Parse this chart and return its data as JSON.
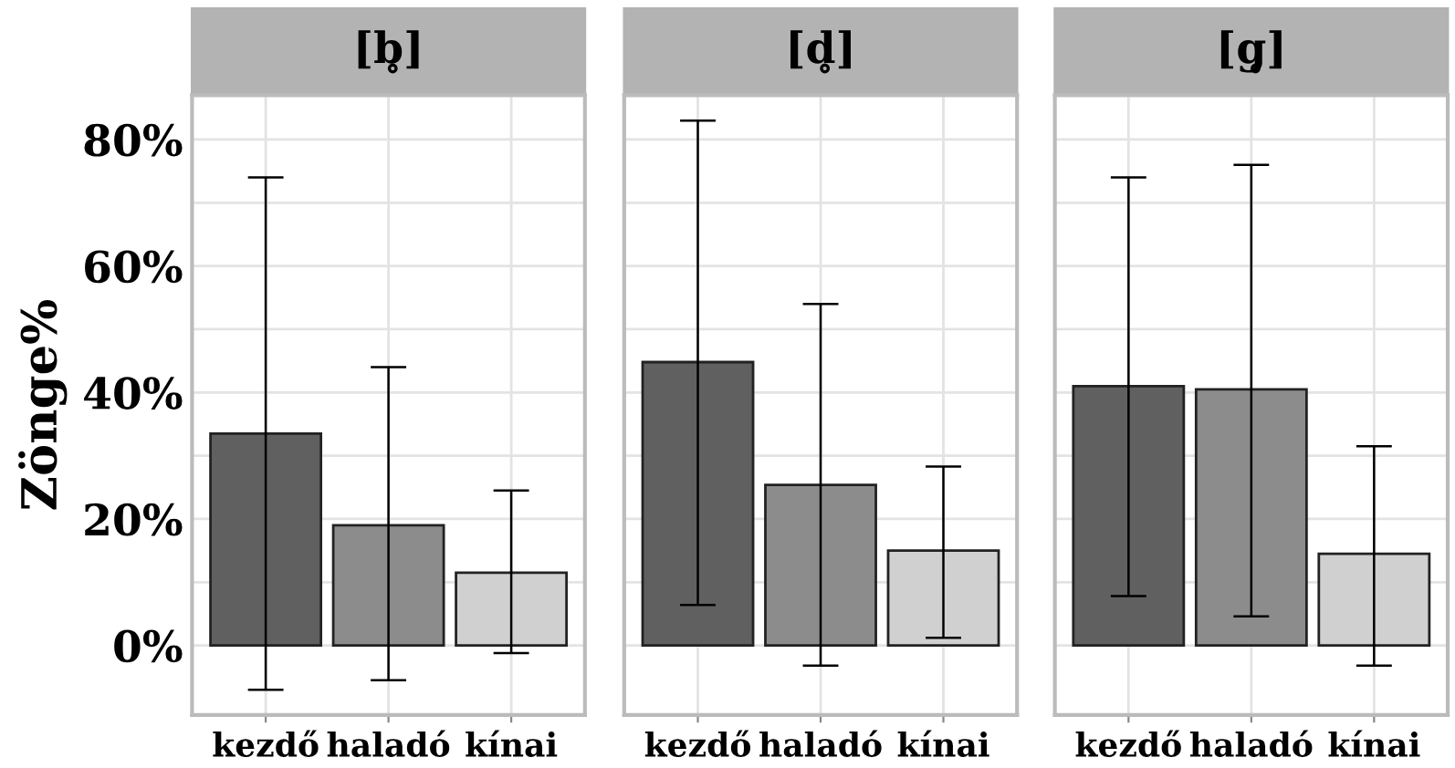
{
  "chart_data": [
    {
      "type": "bar",
      "title": "[b̥]",
      "ylabel": "Zönge%",
      "categories": [
        "kezdő",
        "haladó",
        "kínai"
      ],
      "values": [
        33.5,
        19,
        11.5
      ],
      "colors": [
        "#606060",
        "#8c8c8c",
        "#d0d0d0"
      ],
      "errors": [
        [
          -7,
          74
        ],
        [
          -5.5,
          44
        ],
        [
          -1.2,
          24.5
        ]
      ],
      "ylim": [
        -11,
        87
      ],
      "yticks": [
        {
          "value": 0,
          "label": "0%"
        },
        {
          "value": 10,
          "label": null
        },
        {
          "value": 20,
          "label": "20%"
        },
        {
          "value": 30,
          "label": null
        },
        {
          "value": 40,
          "label": "40%"
        },
        {
          "value": 50,
          "label": null
        },
        {
          "value": 60,
          "label": "60%"
        },
        {
          "value": 70,
          "label": null
        },
        {
          "value": 80,
          "label": "80%"
        }
      ],
      "grid": true
    },
    {
      "type": "bar",
      "title": "[d̥]",
      "categories": [
        "kezdő",
        "haladó",
        "kínai"
      ],
      "values": [
        44.8,
        25.4,
        15
      ],
      "colors": [
        "#606060",
        "#8c8c8c",
        "#d0d0d0"
      ],
      "errors": [
        [
          6.4,
          83
        ],
        [
          -3.2,
          54
        ],
        [
          1.2,
          28.3
        ]
      ],
      "ylim": [
        -11,
        87
      ],
      "yticks": [
        {
          "value": 0,
          "label": null
        },
        {
          "value": 10,
          "label": null
        },
        {
          "value": 20,
          "label": null
        },
        {
          "value": 30,
          "label": null
        },
        {
          "value": 40,
          "label": null
        },
        {
          "value": 50,
          "label": null
        },
        {
          "value": 60,
          "label": null
        },
        {
          "value": 70,
          "label": null
        },
        {
          "value": 80,
          "label": null
        }
      ],
      "grid": true,
      "tick_labels": "x"
    },
    {
      "type": "bar",
      "title": "[g̥]",
      "categories": [
        "kezdő",
        "haladó",
        "kínai"
      ],
      "values": [
        41,
        40.5,
        14.5
      ],
      "colors": [
        "#606060",
        "#8c8c8c",
        "#d0d0d0"
      ],
      "errors": [
        [
          7.8,
          74
        ],
        [
          4.6,
          76
        ],
        [
          -3.2,
          31.5
        ]
      ],
      "ylim": [
        -11,
        87
      ],
      "yticks": [
        {
          "value": 0,
          "label": null
        },
        {
          "value": 10,
          "label": null
        },
        {
          "value": 20,
          "label": null
        },
        {
          "value": 30,
          "label": null
        },
        {
          "value": 40,
          "label": null
        },
        {
          "value": 50,
          "label": null
        },
        {
          "value": 60,
          "label": null
        },
        {
          "value": 70,
          "label": null
        },
        {
          "value": 80,
          "label": null
        }
      ],
      "grid": true,
      "tick_labels": "x"
    }
  ]
}
